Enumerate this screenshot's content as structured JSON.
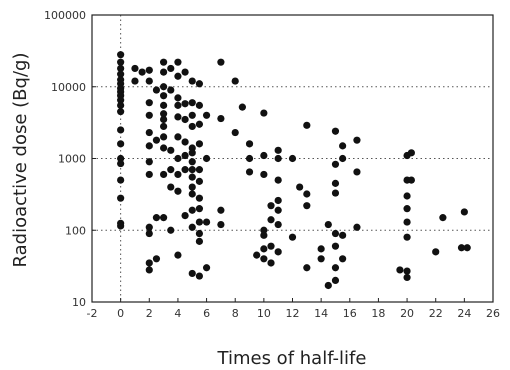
{
  "chart_data": {
    "type": "scatter",
    "xlabel": "Times of half-life",
    "ylabel": "Radioactive dose (Bq/g)",
    "xlim": [
      -2,
      26
    ],
    "ylim": [
      10,
      100000
    ],
    "yscale": "log",
    "x_ticks": [
      "-2",
      "0",
      "2",
      "4",
      "6",
      "8",
      "10",
      "12",
      "14",
      "16",
      "18",
      "20",
      "22",
      "24",
      "26"
    ],
    "y_ticks": [
      "10",
      "100",
      "1000",
      "10000",
      "100000"
    ],
    "grid": "dotted horizontal at 100, 1000, 10000; dotted vertical at x=0",
    "points": [
      {
        "x": 0,
        "y": 28000
      },
      {
        "x": 0,
        "y": 22000
      },
      {
        "x": 0,
        "y": 18000
      },
      {
        "x": 0,
        "y": 15000
      },
      {
        "x": 0,
        "y": 12500
      },
      {
        "x": 0,
        "y": 11000
      },
      {
        "x": 0,
        "y": 9500
      },
      {
        "x": 0,
        "y": 8500
      },
      {
        "x": 0,
        "y": 7500
      },
      {
        "x": 0,
        "y": 6500
      },
      {
        "x": 0,
        "y": 5500
      },
      {
        "x": 0,
        "y": 4500
      },
      {
        "x": 0,
        "y": 2500
      },
      {
        "x": 0,
        "y": 1600
      },
      {
        "x": 0,
        "y": 1000
      },
      {
        "x": 0,
        "y": 850
      },
      {
        "x": 0,
        "y": 500
      },
      {
        "x": 0,
        "y": 280
      },
      {
        "x": 0,
        "y": 125
      },
      {
        "x": 0,
        "y": 115
      },
      {
        "x": 1,
        "y": 18000
      },
      {
        "x": 1,
        "y": 12000
      },
      {
        "x": 1.5,
        "y": 16000
      },
      {
        "x": 2,
        "y": 17000
      },
      {
        "x": 2,
        "y": 12000
      },
      {
        "x": 2,
        "y": 6000
      },
      {
        "x": 2,
        "y": 4000
      },
      {
        "x": 2,
        "y": 2300
      },
      {
        "x": 2,
        "y": 1500
      },
      {
        "x": 2,
        "y": 900
      },
      {
        "x": 2,
        "y": 600
      },
      {
        "x": 2,
        "y": 110
      },
      {
        "x": 2,
        "y": 90
      },
      {
        "x": 2,
        "y": 35
      },
      {
        "x": 2,
        "y": 28
      },
      {
        "x": 2.5,
        "y": 9000
      },
      {
        "x": 2.5,
        "y": 1800
      },
      {
        "x": 2.5,
        "y": 150
      },
      {
        "x": 2.5,
        "y": 40
      },
      {
        "x": 3,
        "y": 22000
      },
      {
        "x": 3,
        "y": 16000
      },
      {
        "x": 3,
        "y": 10000
      },
      {
        "x": 3,
        "y": 7500
      },
      {
        "x": 3,
        "y": 5500
      },
      {
        "x": 3,
        "y": 4200
      },
      {
        "x": 3,
        "y": 3500
      },
      {
        "x": 3,
        "y": 2800
      },
      {
        "x": 3,
        "y": 2000
      },
      {
        "x": 3,
        "y": 1400
      },
      {
        "x": 3,
        "y": 600
      },
      {
        "x": 3,
        "y": 150
      },
      {
        "x": 3.5,
        "y": 18000
      },
      {
        "x": 3.5,
        "y": 9000
      },
      {
        "x": 3.5,
        "y": 1300
      },
      {
        "x": 3.5,
        "y": 700
      },
      {
        "x": 3.5,
        "y": 400
      },
      {
        "x": 3.5,
        "y": 100
      },
      {
        "x": 4,
        "y": 22000
      },
      {
        "x": 4,
        "y": 14000
      },
      {
        "x": 4,
        "y": 7000
      },
      {
        "x": 4,
        "y": 5500
      },
      {
        "x": 4,
        "y": 3800
      },
      {
        "x": 4,
        "y": 2000
      },
      {
        "x": 4,
        "y": 1000
      },
      {
        "x": 4,
        "y": 600
      },
      {
        "x": 4,
        "y": 350
      },
      {
        "x": 4,
        "y": 45
      },
      {
        "x": 4.5,
        "y": 16000
      },
      {
        "x": 4.5,
        "y": 5800
      },
      {
        "x": 4.5,
        "y": 3500
      },
      {
        "x": 4.5,
        "y": 1700
      },
      {
        "x": 4.5,
        "y": 1100
      },
      {
        "x": 4.5,
        "y": 700
      },
      {
        "x": 4.5,
        "y": 160
      },
      {
        "x": 5,
        "y": 12000
      },
      {
        "x": 5,
        "y": 6000
      },
      {
        "x": 5,
        "y": 4000
      },
      {
        "x": 5,
        "y": 2800
      },
      {
        "x": 5,
        "y": 1400
      },
      {
        "x": 5,
        "y": 1200
      },
      {
        "x": 5,
        "y": 900
      },
      {
        "x": 5,
        "y": 700
      },
      {
        "x": 5,
        "y": 550
      },
      {
        "x": 5,
        "y": 400
      },
      {
        "x": 5,
        "y": 320
      },
      {
        "x": 5,
        "y": 190
      },
      {
        "x": 5,
        "y": 110
      },
      {
        "x": 5,
        "y": 25
      },
      {
        "x": 5.5,
        "y": 11000
      },
      {
        "x": 5.5,
        "y": 5500
      },
      {
        "x": 5.5,
        "y": 3000
      },
      {
        "x": 5.5,
        "y": 1600
      },
      {
        "x": 5.5,
        "y": 700
      },
      {
        "x": 5.5,
        "y": 480
      },
      {
        "x": 5.5,
        "y": 280
      },
      {
        "x": 5.5,
        "y": 200
      },
      {
        "x": 5.5,
        "y": 130
      },
      {
        "x": 5.5,
        "y": 90
      },
      {
        "x": 5.5,
        "y": 70
      },
      {
        "x": 5.5,
        "y": 23
      },
      {
        "x": 6,
        "y": 4000
      },
      {
        "x": 6,
        "y": 1000
      },
      {
        "x": 6,
        "y": 130
      },
      {
        "x": 6,
        "y": 30
      },
      {
        "x": 7,
        "y": 22000
      },
      {
        "x": 7,
        "y": 3600
      },
      {
        "x": 7,
        "y": 190
      },
      {
        "x": 7,
        "y": 120
      },
      {
        "x": 8,
        "y": 12000
      },
      {
        "x": 8,
        "y": 2300
      },
      {
        "x": 8.5,
        "y": 5200
      },
      {
        "x": 9,
        "y": 1600
      },
      {
        "x": 9,
        "y": 1000
      },
      {
        "x": 9,
        "y": 650
      },
      {
        "x": 9.5,
        "y": 45
      },
      {
        "x": 10,
        "y": 4300
      },
      {
        "x": 10,
        "y": 1100
      },
      {
        "x": 10,
        "y": 600
      },
      {
        "x": 10,
        "y": 100
      },
      {
        "x": 10,
        "y": 85
      },
      {
        "x": 10,
        "y": 55
      },
      {
        "x": 10,
        "y": 40
      },
      {
        "x": 10.5,
        "y": 220
      },
      {
        "x": 10.5,
        "y": 140
      },
      {
        "x": 10.5,
        "y": 60
      },
      {
        "x": 10.5,
        "y": 35
      },
      {
        "x": 11,
        "y": 1300
      },
      {
        "x": 11,
        "y": 1000
      },
      {
        "x": 11,
        "y": 500
      },
      {
        "x": 11,
        "y": 260
      },
      {
        "x": 11,
        "y": 190
      },
      {
        "x": 11,
        "y": 120
      },
      {
        "x": 11,
        "y": 50
      },
      {
        "x": 12,
        "y": 1000
      },
      {
        "x": 12,
        "y": 80
      },
      {
        "x": 12.5,
        "y": 400
      },
      {
        "x": 13,
        "y": 2900
      },
      {
        "x": 13,
        "y": 320
      },
      {
        "x": 13,
        "y": 220
      },
      {
        "x": 13,
        "y": 30
      },
      {
        "x": 14,
        "y": 55
      },
      {
        "x": 14,
        "y": 40
      },
      {
        "x": 14.5,
        "y": 120
      },
      {
        "x": 14.5,
        "y": 17
      },
      {
        "x": 15,
        "y": 2400
      },
      {
        "x": 15,
        "y": 830
      },
      {
        "x": 15,
        "y": 450
      },
      {
        "x": 15,
        "y": 330
      },
      {
        "x": 15,
        "y": 90
      },
      {
        "x": 15,
        "y": 60
      },
      {
        "x": 15,
        "y": 30
      },
      {
        "x": 15,
        "y": 20
      },
      {
        "x": 15.5,
        "y": 1500
      },
      {
        "x": 15.5,
        "y": 1000
      },
      {
        "x": 15.5,
        "y": 85
      },
      {
        "x": 15.5,
        "y": 40
      },
      {
        "x": 16.5,
        "y": 1800
      },
      {
        "x": 16.5,
        "y": 650
      },
      {
        "x": 16.5,
        "y": 110
      },
      {
        "x": 19.5,
        "y": 28
      },
      {
        "x": 20,
        "y": 1100
      },
      {
        "x": 20,
        "y": 500
      },
      {
        "x": 20,
        "y": 300
      },
      {
        "x": 20,
        "y": 200
      },
      {
        "x": 20,
        "y": 130
      },
      {
        "x": 20,
        "y": 80
      },
      {
        "x": 20,
        "y": 27
      },
      {
        "x": 20,
        "y": 22
      },
      {
        "x": 20.3,
        "y": 1200
      },
      {
        "x": 20.3,
        "y": 500
      },
      {
        "x": 22,
        "y": 50
      },
      {
        "x": 22.5,
        "y": 150
      },
      {
        "x": 23.8,
        "y": 57
      },
      {
        "x": 24,
        "y": 180
      },
      {
        "x": 24.2,
        "y": 57
      }
    ]
  }
}
